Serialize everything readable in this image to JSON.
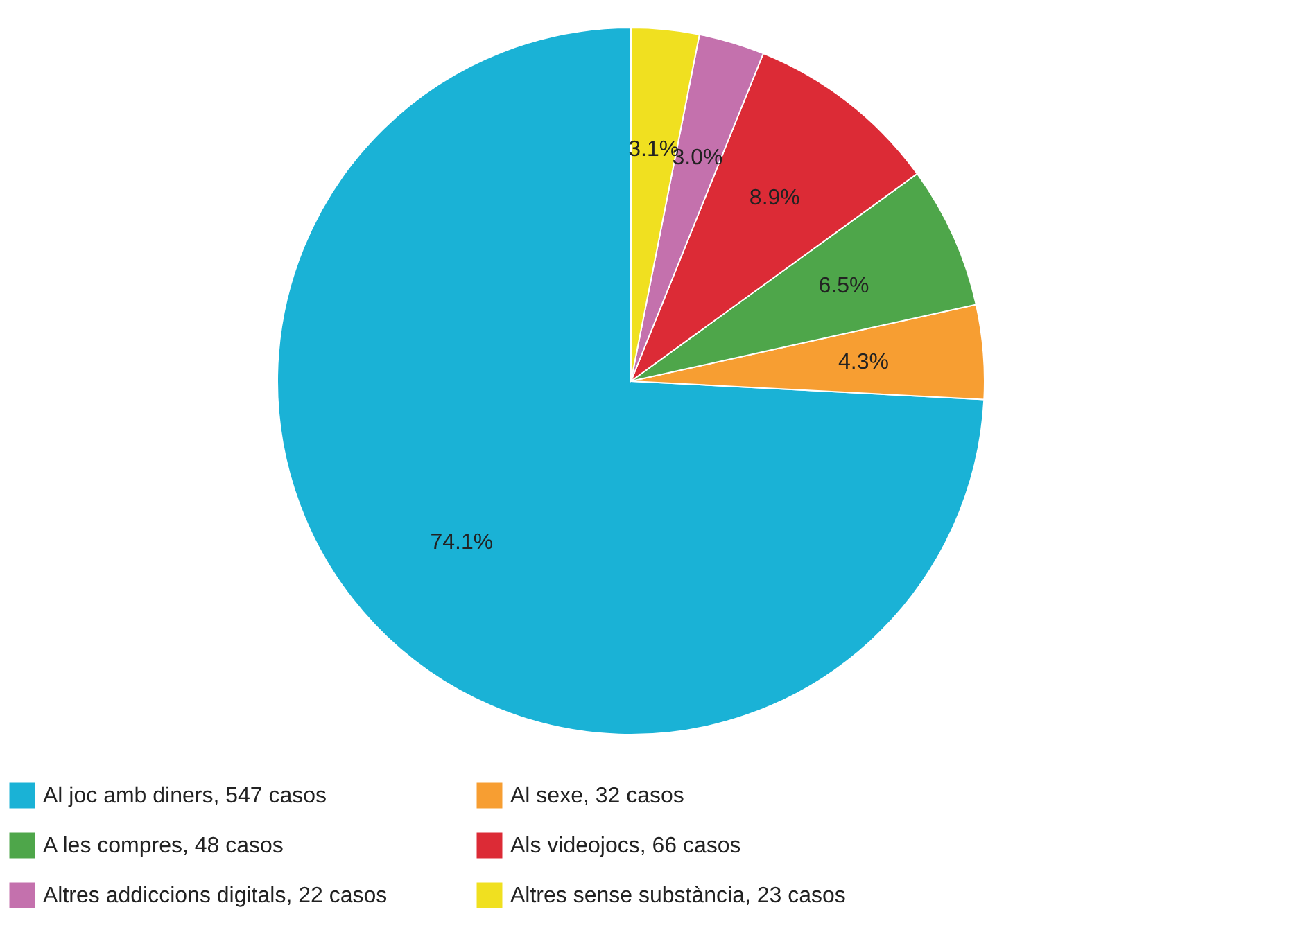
{
  "chart_data": {
    "type": "pie",
    "categories": [
      "Al joc amb diners, 547 casos",
      "Al sexe, 32 casos",
      "A les compres, 48 casos",
      "Als videojocs, 66 casos",
      "Altres addiccions digitals, 22 casos",
      "Altres sense substància, 23 casos"
    ],
    "values": [
      74.1,
      4.3,
      6.5,
      8.9,
      3.0,
      3.1
    ],
    "value_labels": [
      "74.1%",
      "4.3%",
      "6.5%",
      "8.9%",
      "3.0%",
      "3.1%"
    ],
    "colors": [
      "#1ab2d6",
      "#f79e32",
      "#4ea64a",
      "#dc2b36",
      "#c471ad",
      "#f0e020"
    ],
    "legend": "bottom"
  }
}
